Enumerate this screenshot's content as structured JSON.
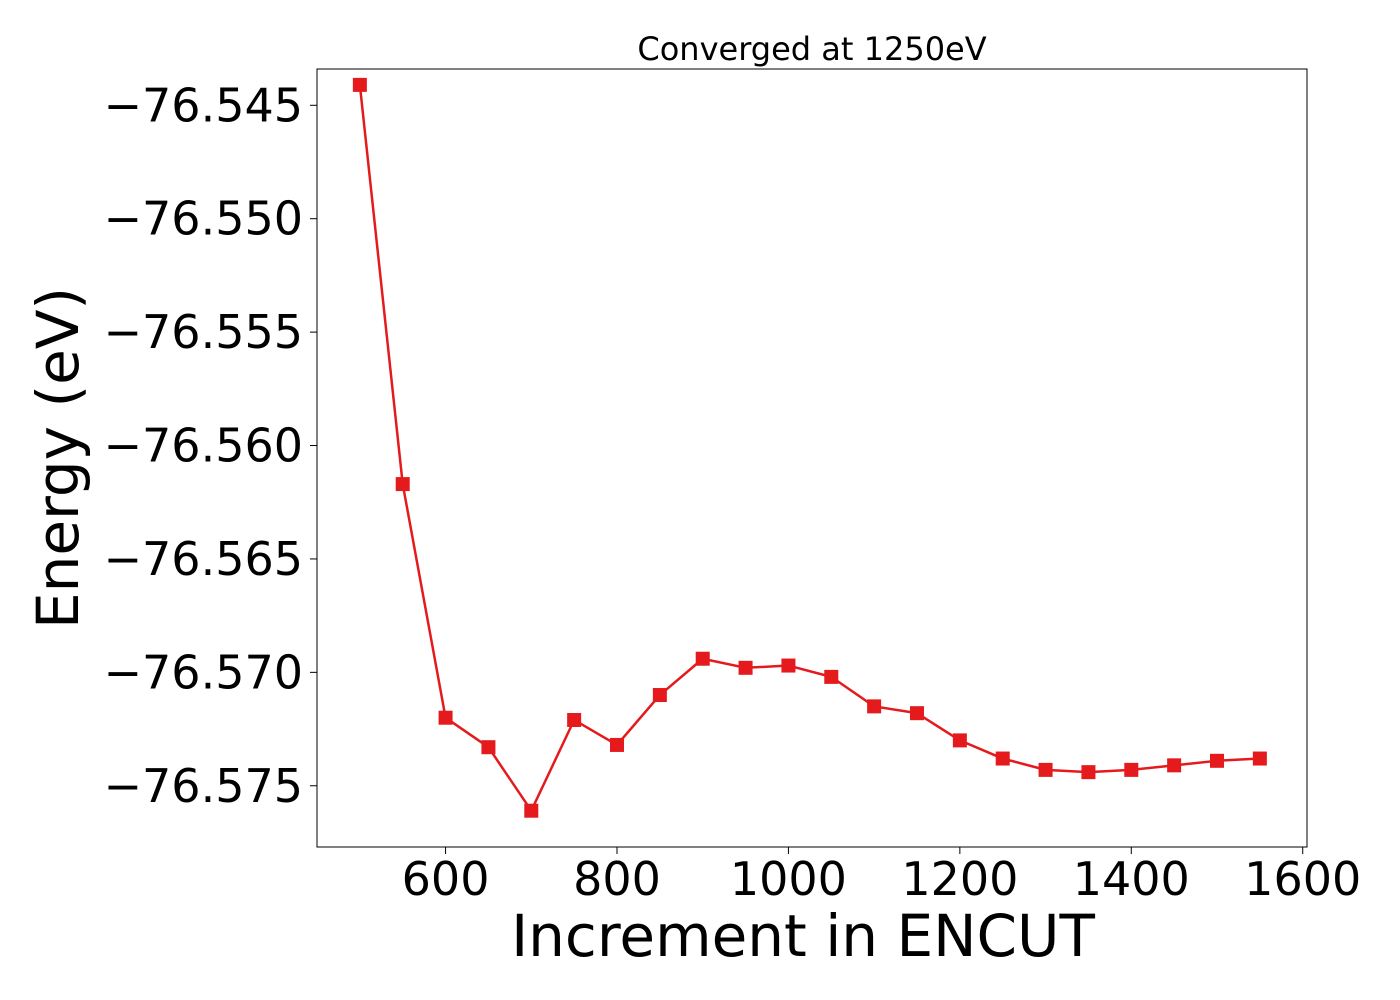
{
  "chart_data": {
    "type": "line",
    "title": "Converged at 1250eV",
    "xlabel": "Increment in ENCUT",
    "ylabel": "Energy (eV)",
    "xlim": [
      450,
      1605
    ],
    "ylim": [
      -76.5777,
      -76.5434
    ],
    "x_ticks": [
      600,
      800,
      1000,
      1200,
      1400,
      1600
    ],
    "x_tick_labels": [
      "600",
      "800",
      "1000",
      "1200",
      "1400",
      "1600"
    ],
    "y_ticks": [
      -76.545,
      -76.55,
      -76.555,
      -76.56,
      -76.565,
      -76.57,
      -76.575
    ],
    "y_tick_labels": [
      "−76.545",
      "−76.550",
      "−76.555",
      "−76.560",
      "−76.565",
      "−76.570",
      "−76.575"
    ],
    "grid": false,
    "legend": false,
    "series": [
      {
        "color": "#e41a1c",
        "marker": "square",
        "x": [
          500,
          550,
          600,
          650,
          700,
          750,
          800,
          850,
          900,
          950,
          1000,
          1050,
          1100,
          1150,
          1200,
          1250,
          1300,
          1350,
          1400,
          1450,
          1500,
          1550
        ],
        "y": [
          -76.5441,
          -76.5617,
          -76.572,
          -76.5733,
          -76.5761,
          -76.5721,
          -76.5732,
          -76.571,
          -76.5694,
          -76.5698,
          -76.5697,
          -76.5702,
          -76.5715,
          -76.5718,
          -76.573,
          -76.5738,
          -76.5743,
          -76.5744,
          -76.5743,
          -76.5741,
          -76.5739,
          -76.5738
        ]
      }
    ]
  }
}
